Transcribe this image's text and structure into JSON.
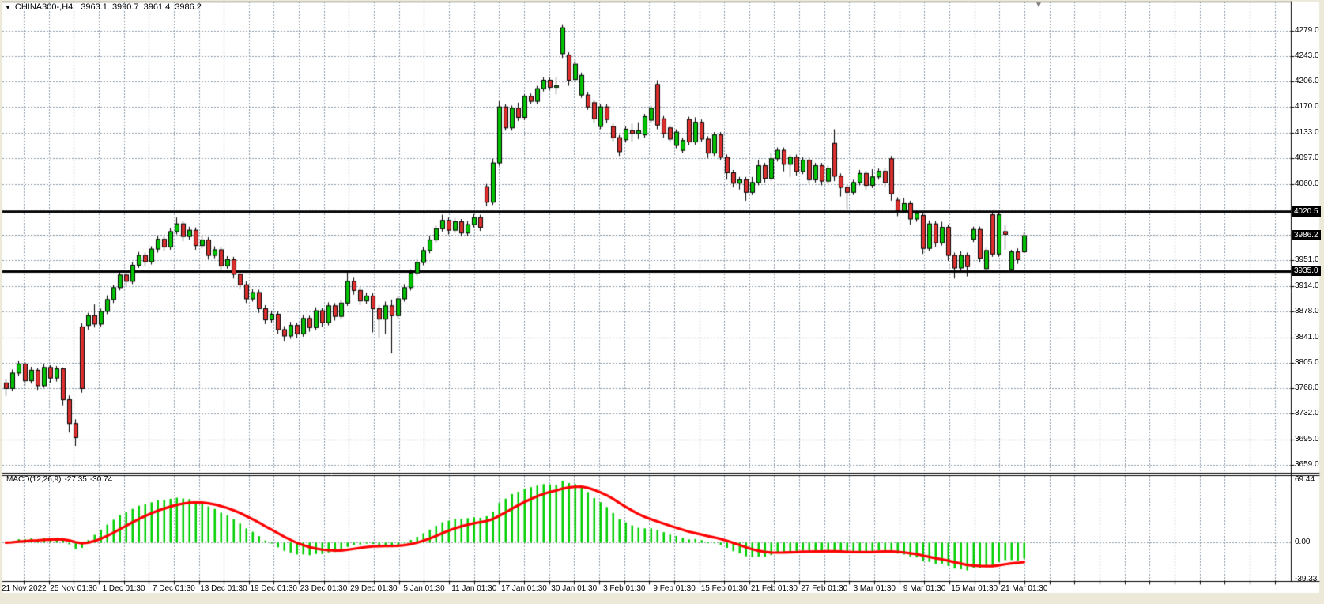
{
  "title_bar": {
    "collapse_icon": "▼",
    "symbol_period": "CHINA300-,H4",
    "open": "3963.1",
    "high": "3990.7",
    "low": "3961.4",
    "close": "3986.2",
    "shift_marker_icon": "▼"
  },
  "chart_data": {
    "type": "candlestick",
    "symbol": "CHINA300-",
    "timeframe": "H4",
    "title": "CHINA300-,H4 3963.1 3990.7 3961.4 3986.2",
    "current_bar": {
      "open": 3963.1,
      "high": 3990.7,
      "low": 3961.4,
      "close": 3986.2
    },
    "price_axis": {
      "labeled_ticks": [
        4279.0,
        4243.0,
        4206.0,
        4170.0,
        4133.0,
        4097.0,
        4060.0,
        3951.0,
        3914.0,
        3878.0,
        3841.0,
        3805.0,
        3768.0,
        3732.0,
        3695.0,
        3659.0
      ],
      "grid_only_ticks": [
        4024.0,
        3987.5
      ],
      "decimals": 1
    },
    "hlines": [
      {
        "price": 4020.5,
        "label": "4020.5",
        "color": "#000000",
        "width": 3
      },
      {
        "price": 3935.0,
        "label": "3935.0",
        "color": "#000000",
        "width": 3
      }
    ],
    "bid": {
      "price": 3986.2,
      "label": "3986.2",
      "line_color": "#b8b8b8"
    },
    "time_axis": {
      "labels": [
        "21 Nov 2022",
        "25 Nov 01:30",
        "1 Dec 01:30",
        "7 Dec 01:30",
        "13 Dec 01:30",
        "19 Dec 01:30",
        "23 Dec 01:30",
        "29 Dec 01:30",
        "5 Jan 01:30",
        "11 Jan 01:30",
        "17 Jan 01:30",
        "30 Jan 01:30",
        "3 Feb 01:30",
        "9 Feb 01:30",
        "15 Feb 01:30",
        "21 Feb 01:30",
        "27 Feb 01:30",
        "3 Mar 01:30",
        "9 Mar 01:30",
        "15 Mar 01:30",
        "21 Mar 01:30"
      ]
    },
    "candles": [
      [
        3776,
        3782,
        3757,
        3768
      ],
      [
        3768,
        3795,
        3764,
        3790
      ],
      [
        3790,
        3808,
        3786,
        3803
      ],
      [
        3803,
        3806,
        3772,
        3779
      ],
      [
        3779,
        3799,
        3775,
        3794
      ],
      [
        3794,
        3797,
        3766,
        3772
      ],
      [
        3772,
        3803,
        3769,
        3798
      ],
      [
        3798,
        3801,
        3776,
        3783
      ],
      [
        3783,
        3800,
        3778,
        3796
      ],
      [
        3796,
        3798,
        3744,
        3752
      ],
      [
        3752,
        3758,
        3705,
        3718
      ],
      [
        3718,
        3724,
        3686,
        3698
      ],
      [
        3856,
        3861,
        3762,
        3768
      ],
      [
        3858,
        3876,
        3852,
        3872
      ],
      [
        3872,
        3888,
        3855,
        3860
      ],
      [
        3860,
        3882,
        3856,
        3878
      ],
      [
        3878,
        3901,
        3874,
        3895
      ],
      [
        3895,
        3916,
        3890,
        3912
      ],
      [
        3912,
        3935,
        3908,
        3930
      ],
      [
        3930,
        3934,
        3914,
        3921
      ],
      [
        3921,
        3948,
        3917,
        3944
      ],
      [
        3944,
        3963,
        3940,
        3958
      ],
      [
        3958,
        3962,
        3942,
        3949
      ],
      [
        3949,
        3971,
        3945,
        3967
      ],
      [
        3967,
        3986,
        3962,
        3981
      ],
      [
        3981,
        3985,
        3964,
        3970
      ],
      [
        3970,
        3997,
        3966,
        3992
      ],
      [
        3992,
        4012,
        3988,
        4003
      ],
      [
        4003,
        4007,
        3978,
        3985
      ],
      [
        3985,
        3999,
        3980,
        3994
      ],
      [
        3994,
        3998,
        3966,
        3972
      ],
      [
        3972,
        3985,
        3968,
        3980
      ],
      [
        3980,
        3984,
        3952,
        3958
      ],
      [
        3958,
        3971,
        3954,
        3966
      ],
      [
        3966,
        3970,
        3937,
        3943
      ],
      [
        3943,
        3957,
        3939,
        3952
      ],
      [
        3952,
        3956,
        3925,
        3931
      ],
      [
        3931,
        3936,
        3910,
        3916
      ],
      [
        3916,
        3921,
        3890,
        3896
      ],
      [
        3896,
        3910,
        3892,
        3905
      ],
      [
        3905,
        3909,
        3876,
        3882
      ],
      [
        3882,
        3887,
        3860,
        3866
      ],
      [
        3866,
        3879,
        3862,
        3874
      ],
      [
        3874,
        3878,
        3846,
        3852
      ],
      [
        3852,
        3857,
        3836,
        3843
      ],
      [
        3843,
        3863,
        3839,
        3858
      ],
      [
        3858,
        3862,
        3840,
        3846
      ],
      [
        3846,
        3873,
        3842,
        3868
      ],
      [
        3868,
        3872,
        3849,
        3855
      ],
      [
        3855,
        3884,
        3851,
        3879
      ],
      [
        3879,
        3883,
        3856,
        3862
      ],
      [
        3862,
        3891,
        3858,
        3886
      ],
      [
        3886,
        3890,
        3865,
        3871
      ],
      [
        3871,
        3895,
        3867,
        3890
      ],
      [
        3890,
        3936,
        3886,
        3921
      ],
      [
        3921,
        3926,
        3902,
        3908
      ],
      [
        3908,
        3913,
        3887,
        3893
      ],
      [
        3893,
        3905,
        3889,
        3900
      ],
      [
        3900,
        3904,
        3848,
        3882
      ],
      [
        3882,
        3887,
        3840,
        3867
      ],
      [
        3867,
        3892,
        3846,
        3886
      ],
      [
        3886,
        3895,
        3818,
        3872
      ],
      [
        3872,
        3900,
        3868,
        3896
      ],
      [
        3896,
        3917,
        3892,
        3912
      ],
      [
        3912,
        3938,
        3908,
        3933
      ],
      [
        3933,
        3953,
        3929,
        3948
      ],
      [
        3948,
        3970,
        3944,
        3965
      ],
      [
        3965,
        3985,
        3961,
        3980
      ],
      [
        3980,
        4001,
        3976,
        3996
      ],
      [
        3996,
        4016,
        3992,
        4008
      ],
      [
        4008,
        4012,
        3988,
        3994
      ],
      [
        3994,
        4011,
        3990,
        4006
      ],
      [
        4006,
        4010,
        3985,
        3990
      ],
      [
        3990,
        4007,
        3986,
        4002
      ],
      [
        4002,
        4017,
        3998,
        4012
      ],
      [
        4012,
        4016,
        3993,
        3998
      ],
      [
        4056,
        4060,
        4028,
        4034
      ],
      [
        4034,
        4096,
        4030,
        4090
      ],
      [
        4090,
        4178,
        4086,
        4170
      ],
      [
        4170,
        4174,
        4136,
        4140
      ],
      [
        4140,
        4172,
        4136,
        4168
      ],
      [
        4168,
        4176,
        4150,
        4155
      ],
      [
        4155,
        4188,
        4151,
        4185
      ],
      [
        4185,
        4189,
        4174,
        4178
      ],
      [
        4178,
        4200,
        4174,
        4196
      ],
      [
        4196,
        4212,
        4192,
        4208
      ],
      [
        4208,
        4212,
        4194,
        4198
      ],
      [
        4198,
        4212,
        4188,
        4200
      ],
      [
        4246,
        4288,
        4240,
        4283
      ],
      [
        4244,
        4248,
        4200,
        4208
      ],
      [
        4209,
        4237,
        4205,
        4231
      ],
      [
        4187,
        4219,
        4183,
        4215
      ],
      [
        4187,
        4191,
        4166,
        4170
      ],
      [
        4176,
        4180,
        4147,
        4153
      ],
      [
        4142,
        4174,
        4138,
        4170
      ],
      [
        4170,
        4174,
        4147,
        4152
      ],
      [
        4142,
        4146,
        4121,
        4126
      ],
      [
        4126,
        4130,
        4100,
        4106
      ],
      [
        4123,
        4142,
        4119,
        4138
      ],
      [
        4136,
        4146,
        4120,
        4132
      ],
      [
        4132,
        4148,
        4124,
        4136
      ],
      [
        4130,
        4160,
        4126,
        4156
      ],
      [
        4151,
        4172,
        4147,
        4168
      ],
      [
        4202,
        4208,
        4138,
        4144
      ],
      [
        4153,
        4157,
        4126,
        4132
      ],
      [
        4140,
        4144,
        4120,
        4124
      ],
      [
        4115,
        4138,
        4111,
        4134
      ],
      [
        4108,
        4126,
        4104,
        4122
      ],
      [
        4152,
        4156,
        4115,
        4120
      ],
      [
        4120,
        4155,
        4116,
        4148
      ],
      [
        4148,
        4152,
        4120,
        4124
      ],
      [
        4124,
        4128,
        4097,
        4104
      ],
      [
        4104,
        4134,
        4100,
        4130
      ],
      [
        4130,
        4134,
        4094,
        4098
      ],
      [
        4098,
        4102,
        4066,
        4076
      ],
      [
        4076,
        4080,
        4055,
        4061
      ],
      [
        4061,
        4070,
        4052,
        4066
      ],
      [
        4066,
        4070,
        4036,
        4048
      ],
      [
        4048,
        4070,
        4044,
        4062
      ],
      [
        4062,
        4094,
        4058,
        4086
      ],
      [
        4086,
        4090,
        4062,
        4068
      ],
      [
        4068,
        4104,
        4064,
        4096
      ],
      [
        4096,
        4112,
        4092,
        4108
      ],
      [
        4108,
        4112,
        4078,
        4088
      ],
      [
        4088,
        4102,
        4070,
        4098
      ],
      [
        4098,
        4102,
        4072,
        4078
      ],
      [
        4078,
        4098,
        4074,
        4094
      ],
      [
        4094,
        4098,
        4060,
        4066
      ],
      [
        4066,
        4090,
        4062,
        4086
      ],
      [
        4086,
        4090,
        4058,
        4064
      ],
      [
        4064,
        4086,
        4060,
        4082
      ],
      [
        4118,
        4138,
        4064,
        4071
      ],
      [
        4071,
        4075,
        4042,
        4055
      ],
      [
        4055,
        4059,
        4024,
        4048
      ],
      [
        4048,
        4066,
        4044,
        4062
      ],
      [
        4062,
        4080,
        4058,
        4075
      ],
      [
        4075,
        4079,
        4052,
        4058
      ],
      [
        4058,
        4081,
        4054,
        4070
      ],
      [
        4070,
        4082,
        4066,
        4078
      ],
      [
        4078,
        4082,
        4055,
        4062
      ],
      [
        4096,
        4100,
        4036,
        4046
      ],
      [
        4037,
        4041,
        4014,
        4022
      ],
      [
        4022,
        4040,
        4018,
        4032
      ],
      [
        4032,
        4036,
        4002,
        4010
      ],
      [
        4010,
        4022,
        4006,
        4018
      ],
      [
        4015,
        4018,
        3960,
        3968
      ],
      [
        3968,
        4008,
        3964,
        4003
      ],
      [
        4003,
        4007,
        3970,
        3976
      ],
      [
        3976,
        4006,
        3972,
        3998
      ],
      [
        3998,
        4002,
        3950,
        3958
      ],
      [
        3958,
        3962,
        3925,
        3940
      ],
      [
        3940,
        3964,
        3936,
        3958
      ],
      [
        3958,
        3962,
        3928,
        3942
      ],
      [
        3981,
        3999,
        3977,
        3995
      ],
      [
        3995,
        3999,
        3948,
        3954
      ],
      [
        3939,
        3969,
        3935,
        3965
      ],
      [
        4016,
        4020,
        3956,
        3960
      ],
      [
        3960,
        4020,
        3956,
        4016
      ],
      [
        3992,
        4002,
        3966,
        3988
      ],
      [
        3938,
        3966,
        3934,
        3963
      ],
      [
        3963,
        3968,
        3946,
        3952
      ],
      [
        3963.1,
        3990.7,
        3961.4,
        3986.2
      ]
    ],
    "macd": {
      "label": "MACD(12,26,9)",
      "macd_value": "-27.35",
      "signal_value": "-30.74",
      "params": [
        12,
        26,
        9
      ],
      "axis": {
        "top": "69.44",
        "zero": "0.00",
        "bottom": "-39.33"
      },
      "axis_top_value": 69.44,
      "axis_bottom_value": -39.33,
      "histogram_color": "#00cf00",
      "signal_color": "#ff0000"
    },
    "colors": {
      "background": "#ffffff",
      "frame": "#ece9d8",
      "grid": "#8c9aa9",
      "bull": "#00c400",
      "bear": "#de2f2f",
      "outline": "#000000",
      "axis_line": "#000000"
    }
  }
}
